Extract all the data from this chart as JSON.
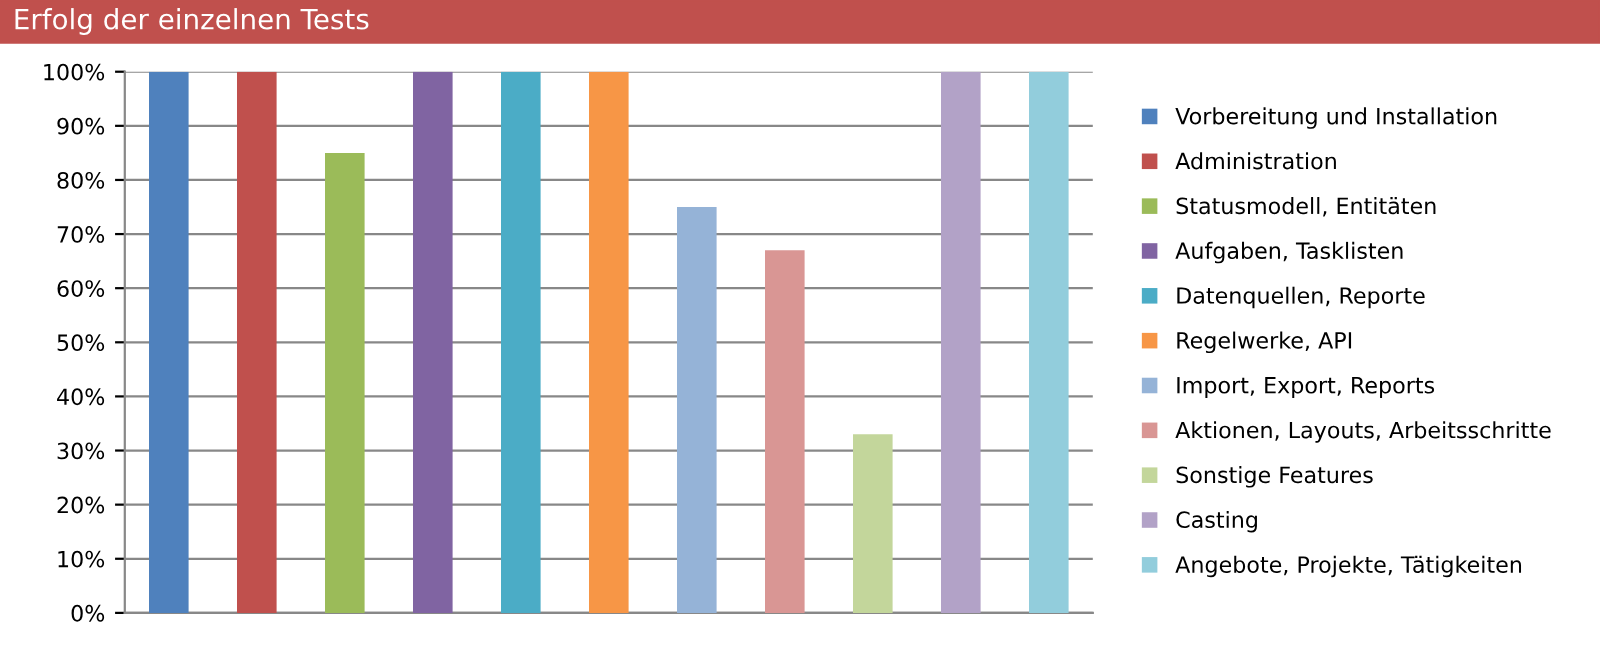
{
  "chart_data": {
    "type": "bar",
    "title": "Erfolg der einzelnen Tests",
    "categories": [
      null,
      null,
      null,
      null,
      null,
      null,
      null,
      null,
      null,
      null,
      null
    ],
    "series": [
      {
        "name": "Vorbereitung und Installation",
        "color": "#4f81bd",
        "values": [
          100,
          null,
          null,
          null,
          null,
          null,
          null,
          null,
          null,
          null,
          null
        ]
      },
      {
        "name": "Administration",
        "color": "#c0504d",
        "values": [
          null,
          100,
          null,
          null,
          null,
          null,
          null,
          null,
          null,
          null,
          null
        ]
      },
      {
        "name": "Statusmodell, Entitäten",
        "color": "#9bbb59",
        "values": [
          null,
          null,
          85,
          null,
          null,
          null,
          null,
          null,
          null,
          null,
          null
        ]
      },
      {
        "name": "Aufgaben, Tasklisten",
        "color": "#8064a2",
        "values": [
          null,
          null,
          null,
          100,
          null,
          null,
          null,
          null,
          null,
          null,
          null
        ]
      },
      {
        "name": "Datenquellen, Reporte",
        "color": "#4bacc6",
        "values": [
          null,
          null,
          null,
          null,
          100,
          null,
          null,
          null,
          null,
          null,
          null
        ]
      },
      {
        "name": "Regelwerke, API",
        "color": "#f79646",
        "values": [
          null,
          null,
          null,
          null,
          null,
          100,
          null,
          null,
          null,
          null,
          null
        ]
      },
      {
        "name": "Import, Export, Reports",
        "color": "#95b3d7",
        "values": [
          null,
          null,
          null,
          null,
          null,
          null,
          75,
          null,
          null,
          null,
          null
        ]
      },
      {
        "name": "Aktionen, Layouts, Arbeitsschritte",
        "color": "#d99694",
        "values": [
          null,
          null,
          null,
          null,
          null,
          null,
          null,
          67,
          null,
          null,
          null
        ]
      },
      {
        "name": "Sonstige Features",
        "color": "#c3d69b",
        "values": [
          null,
          null,
          null,
          null,
          null,
          null,
          null,
          null,
          33,
          null,
          null
        ]
      },
      {
        "name": "Casting",
        "color": "#b2a2c7",
        "values": [
          null,
          null,
          null,
          null,
          null,
          null,
          null,
          null,
          null,
          100,
          null
        ]
      },
      {
        "name": "Angebote, Projekte, Tätigkeiten",
        "color": "#92cddc",
        "values": [
          null,
          null,
          null,
          null,
          null,
          null,
          null,
          null,
          null,
          null,
          100
        ]
      }
    ],
    "ylim": [
      0,
      100
    ],
    "yticks": [
      {
        "value": 0,
        "label": "0%"
      },
      {
        "value": 10,
        "label": "10%"
      },
      {
        "value": 20,
        "label": "20%"
      },
      {
        "value": 30,
        "label": "30%"
      },
      {
        "value": 40,
        "label": "40%"
      },
      {
        "value": 50,
        "label": "50%"
      },
      {
        "value": 60,
        "label": "60%"
      },
      {
        "value": 70,
        "label": "70%"
      },
      {
        "value": 80,
        "label": "80%"
      },
      {
        "value": 90,
        "label": "90%"
      },
      {
        "value": 100,
        "label": "100%"
      }
    ],
    "grid": "y",
    "legend": "right",
    "tick_labels": "y"
  }
}
